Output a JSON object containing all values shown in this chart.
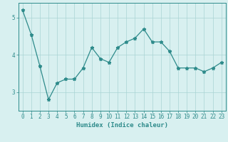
{
  "x": [
    0,
    1,
    2,
    3,
    4,
    5,
    6,
    7,
    8,
    9,
    10,
    11,
    12,
    13,
    14,
    15,
    16,
    17,
    18,
    19,
    20,
    21,
    22,
    23
  ],
  "y": [
    5.2,
    4.55,
    3.7,
    2.8,
    3.25,
    3.35,
    3.35,
    3.65,
    4.2,
    3.9,
    3.8,
    4.2,
    4.35,
    4.45,
    4.7,
    4.35,
    4.35,
    4.1,
    3.65,
    3.65,
    3.65,
    3.55,
    3.65,
    3.8
  ],
  "line_color": "#2e8b8b",
  "marker": "*",
  "marker_size": 3.5,
  "bg_color": "#d8f0f0",
  "grid_color": "#aad4d4",
  "xlabel": "Humidex (Indice chaleur)",
  "xlim": [
    -0.5,
    23.5
  ],
  "ylim": [
    2.5,
    5.4
  ],
  "yticks": [
    3,
    4,
    5
  ],
  "xticks": [
    0,
    1,
    2,
    3,
    4,
    5,
    6,
    7,
    8,
    9,
    10,
    11,
    12,
    13,
    14,
    15,
    16,
    17,
    18,
    19,
    20,
    21,
    22,
    23
  ],
  "tick_label_fontsize": 5.5,
  "xlabel_fontsize": 6.5,
  "tick_color": "#2e8b8b",
  "axis_color": "#2e8b8b"
}
